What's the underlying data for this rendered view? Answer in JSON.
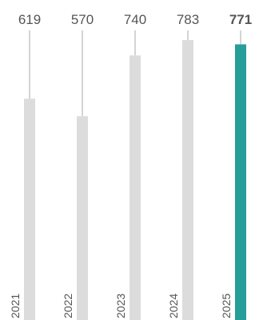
{
  "chart_data": {
    "type": "bar",
    "categories": [
      "2021",
      "2022",
      "2023",
      "2024",
      "2025"
    ],
    "values": [
      619,
      570,
      740,
      783,
      771
    ],
    "value_labels": [
      "619",
      "570",
      "740",
      "783",
      "771"
    ],
    "highlight_index": 4,
    "ylim": [
      0,
      810
    ],
    "grid": false,
    "colors": {
      "bar": "#dcdcdc",
      "highlight_bar": "#279e99",
      "leader_line": "#a8a8a8",
      "label": "#555555",
      "highlight_label": "#279e99"
    }
  }
}
